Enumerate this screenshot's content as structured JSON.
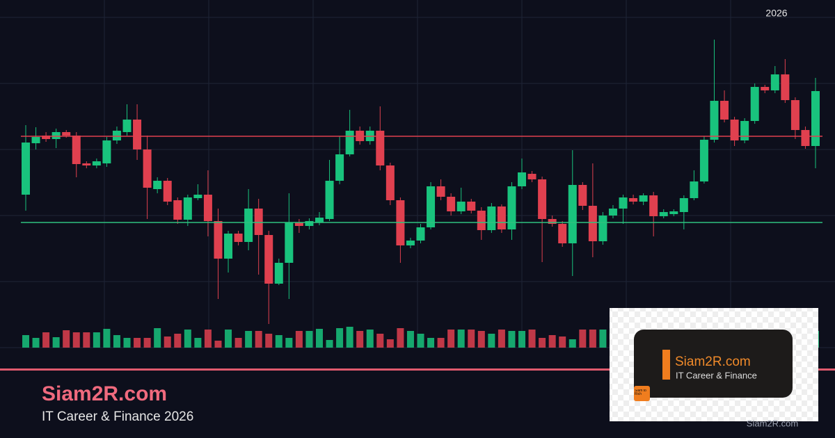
{
  "chart_data": {
    "type": "candlestick",
    "year_label": "2026",
    "ylim": [
      0,
      500
    ],
    "up_color": "#19c37d",
    "down_color": "#e0404f",
    "open": [
      220,
      294,
      305,
      300,
      310,
      305,
      265,
      262,
      265,
      298,
      310,
      328,
      285,
      228,
      240,
      212,
      184,
      215,
      220,
      182,
      128,
      164,
      152,
      200,
      162,
      92,
      122,
      180,
      175,
      180,
      185,
      240,
      278,
      312,
      297,
      312,
      262,
      212,
      147,
      154,
      173,
      232,
      217,
      196,
      210,
      197,
      169,
      203,
      170,
      232,
      250,
      242,
      185,
      178,
      150,
      234,
      204,
      153,
      190,
      200,
      215,
      210,
      219,
      189,
      192,
      195,
      215,
      239,
      299,
      355,
      328,
      298,
      326,
      375,
      370,
      393,
      356,
      313,
      290
    ],
    "high": [
      320,
      317,
      310,
      315,
      313,
      310,
      268,
      272,
      303,
      318,
      350,
      350,
      305,
      245,
      244,
      216,
      220,
      235,
      255,
      200,
      168,
      168,
      228,
      214,
      168,
      128,
      222,
      185,
      186,
      195,
      270,
      304,
      342,
      318,
      318,
      347,
      266,
      216,
      158,
      178,
      238,
      242,
      222,
      230,
      214,
      202,
      208,
      206,
      238,
      272,
      254,
      246,
      190,
      182,
      284,
      238,
      265,
      195,
      205,
      220,
      220,
      222,
      224,
      199,
      199,
      219,
      255,
      304,
      443,
      370,
      332,
      330,
      380,
      378,
      405,
      415,
      360,
      318,
      388
    ],
    "low": [
      197,
      285,
      296,
      287,
      302,
      245,
      258,
      258,
      260,
      293,
      305,
      270,
      185,
      222,
      205,
      178,
      175,
      212,
      160,
      70,
      108,
      147,
      140,
      105,
      34,
      90,
      70,
      165,
      170,
      176,
      182,
      235,
      275,
      292,
      292,
      255,
      205,
      122,
      143,
      150,
      170,
      212,
      190,
      192,
      193,
      155,
      165,
      165,
      155,
      228,
      238,
      123,
      174,
      145,
      103,
      198,
      130,
      148,
      186,
      178,
      206,
      205,
      160,
      186,
      189,
      170,
      212,
      236,
      295,
      324,
      290,
      294,
      322,
      366,
      366,
      352,
      300,
      286,
      258
    ],
    "close": [
      295,
      303,
      300,
      310,
      305,
      264,
      262,
      268,
      298,
      312,
      328,
      285,
      230,
      240,
      210,
      184,
      216,
      220,
      182,
      128,
      164,
      152,
      200,
      162,
      92,
      122,
      180,
      175,
      182,
      187,
      240,
      278,
      312,
      297,
      312,
      262,
      212,
      147,
      154,
      173,
      232,
      217,
      196,
      210,
      197,
      169,
      203,
      170,
      232,
      252,
      242,
      185,
      178,
      150,
      234,
      204,
      153,
      190,
      200,
      216,
      210,
      219,
      189,
      195,
      196,
      215,
      239,
      299,
      355,
      328,
      298,
      326,
      375,
      370,
      393,
      356,
      313,
      290,
      369
    ],
    "volume": [
      18,
      14,
      22,
      15,
      25,
      22,
      22,
      22,
      27,
      18,
      14,
      14,
      14,
      28,
      16,
      20,
      26,
      14,
      26,
      10,
      26,
      14,
      24,
      24,
      20,
      18,
      14,
      24,
      24,
      27,
      11,
      28,
      30,
      24,
      26,
      20,
      12,
      28,
      24,
      20,
      14,
      14,
      26,
      26,
      26,
      24,
      20,
      26,
      24,
      24,
      26,
      14,
      18,
      16,
      12,
      26,
      26,
      26,
      22,
      20,
      18,
      20,
      16,
      22,
      24,
      18,
      20,
      22,
      26,
      24,
      20,
      18,
      22,
      24,
      20,
      18,
      22,
      20,
      24
    ],
    "resistance": 304,
    "resistance_color": "#e0404f",
    "support": 180,
    "support_color": "#2ec27e"
  },
  "brand": {
    "title": "Siam2R.com",
    "subtitle": "IT Career & Finance 2026"
  },
  "badge": {
    "title": "Siam2R.com",
    "subtitle": "IT Career & Finance",
    "logo": "Siam to Rich"
  },
  "watermark": "Siam2R.com"
}
